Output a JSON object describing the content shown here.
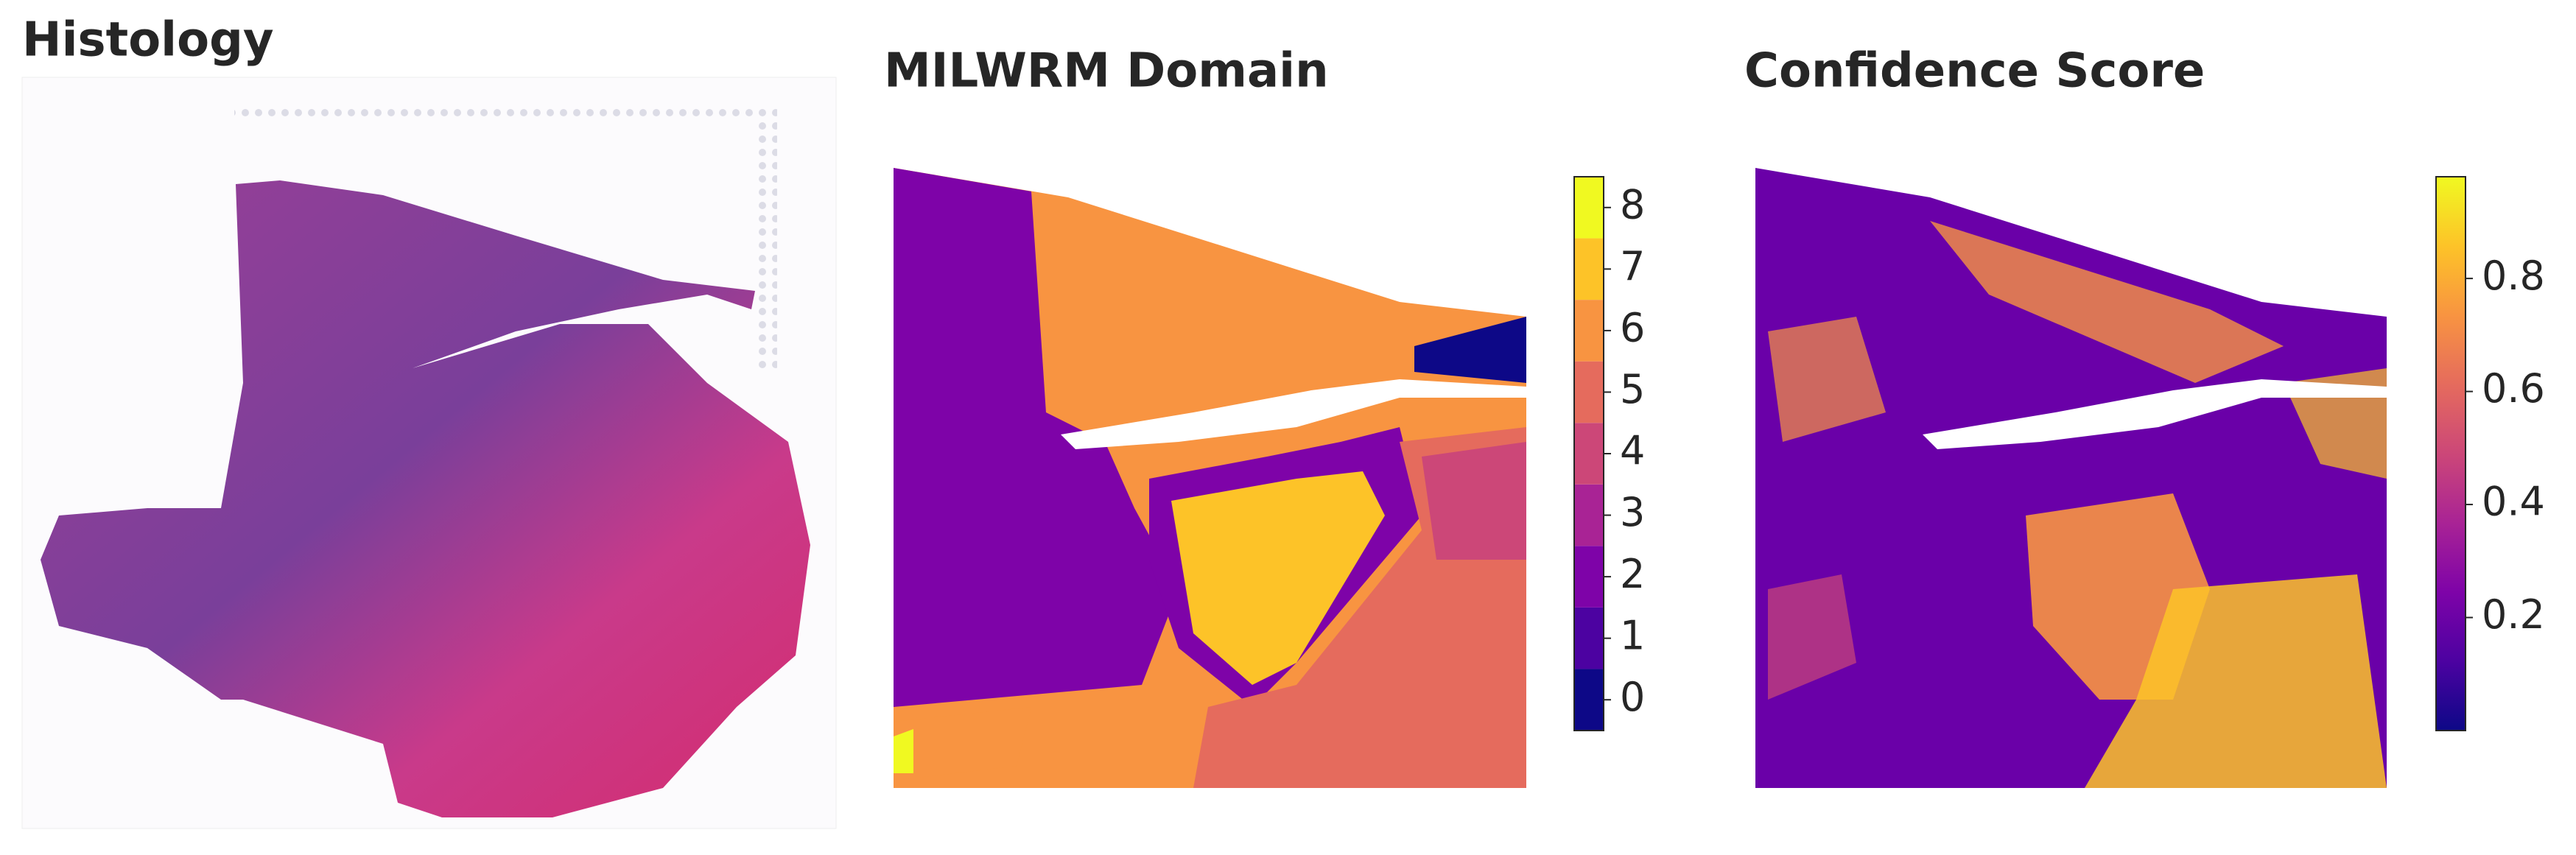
{
  "chart_data": [
    {
      "type": "image",
      "title": "Histology"
    },
    {
      "type": "spatial",
      "title": "MILWRM Domain",
      "colorbar": "discrete",
      "ylim": [
        -0.5,
        8.5
      ],
      "yticks": [
        0,
        1,
        2,
        3,
        4,
        5,
        6,
        7,
        8
      ],
      "colors": [
        "#0d0887",
        "#4c02a1",
        "#7e03a8",
        "#a92395",
        "#cc4778",
        "#e56b5d",
        "#f89441",
        "#fdc328",
        "#f0f921"
      ]
    },
    {
      "type": "spatial",
      "title": "Confidence Score",
      "colorbar": "continuous",
      "ylim": [
        0.0,
        0.98
      ],
      "yticks": [
        0.2,
        0.4,
        0.6,
        0.8
      ],
      "colors": [
        "#0d0887",
        "#4c02a1",
        "#7e03a8",
        "#a92395",
        "#cc4778",
        "#e56b5d",
        "#f89441",
        "#fdc328",
        "#f0f921"
      ]
    }
  ]
}
